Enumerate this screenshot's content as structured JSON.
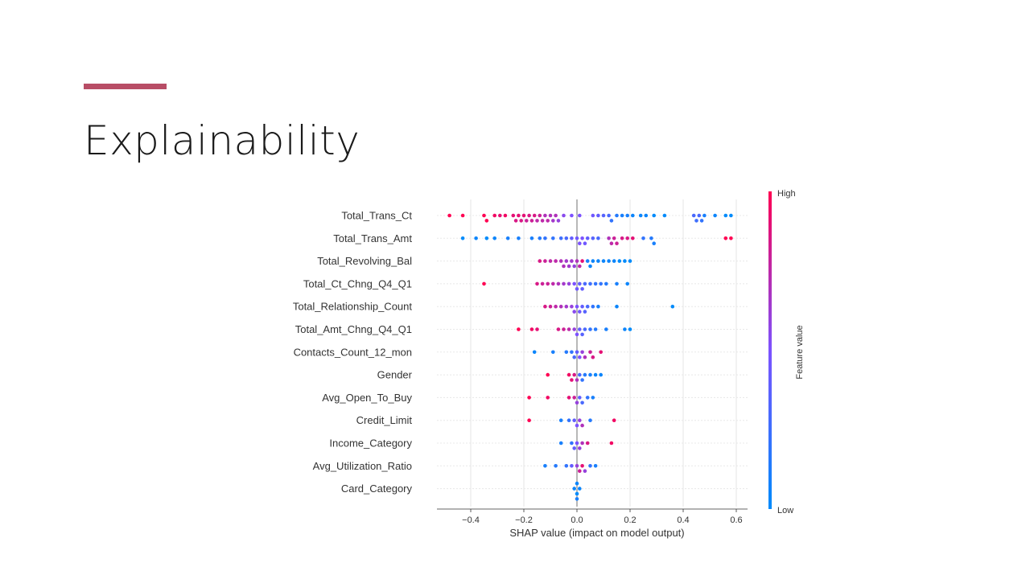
{
  "slide": {
    "title": "Explainability",
    "accent_color": "#b84d66"
  },
  "chart_data": {
    "type": "scatter",
    "subtype": "shap-beeswarm",
    "xlabel": "SHAP value (impact on model output)",
    "xticks": [
      -0.4,
      -0.2,
      0.0,
      0.2,
      0.4,
      0.6
    ],
    "xlim": [
      -0.53,
      0.65
    ],
    "grid": true,
    "colorbar": {
      "title": "Feature value",
      "high_label": "High",
      "low_label": "Low",
      "high_color": "#ff0052",
      "low_color": "#008bfb"
    },
    "features": [
      {
        "name": "Total_Trans_Ct",
        "points": [
          [
            -0.48,
            1
          ],
          [
            -0.43,
            1
          ],
          [
            -0.35,
            1
          ],
          [
            -0.34,
            1
          ],
          [
            -0.31,
            0.95
          ],
          [
            -0.29,
            0.9
          ],
          [
            -0.27,
            0.95
          ],
          [
            -0.24,
            0.9
          ],
          [
            -0.23,
            0.85
          ],
          [
            -0.22,
            0.9
          ],
          [
            -0.21,
            0.85
          ],
          [
            -0.2,
            0.9
          ],
          [
            -0.19,
            0.8
          ],
          [
            -0.18,
            0.85
          ],
          [
            -0.17,
            0.8
          ],
          [
            -0.16,
            0.85
          ],
          [
            -0.15,
            0.75
          ],
          [
            -0.14,
            0.8
          ],
          [
            -0.13,
            0.75
          ],
          [
            -0.12,
            0.7
          ],
          [
            -0.11,
            0.75
          ],
          [
            -0.1,
            0.7
          ],
          [
            -0.09,
            0.65
          ],
          [
            -0.08,
            0.7
          ],
          [
            -0.07,
            0.6
          ],
          [
            -0.05,
            0.55
          ],
          [
            -0.02,
            0.5
          ],
          [
            0.01,
            0.5
          ],
          [
            0.06,
            0.45
          ],
          [
            0.08,
            0.4
          ],
          [
            0.1,
            0.35
          ],
          [
            0.12,
            0.3
          ],
          [
            0.13,
            0.2
          ],
          [
            0.15,
            0.15
          ],
          [
            0.17,
            0.1
          ],
          [
            0.19,
            0.1
          ],
          [
            0.21,
            0.05
          ],
          [
            0.24,
            0.05
          ],
          [
            0.26,
            0.05
          ],
          [
            0.29,
            0.0
          ],
          [
            0.33,
            0.0
          ],
          [
            0.44,
            0.3
          ],
          [
            0.45,
            0.25
          ],
          [
            0.46,
            0.3
          ],
          [
            0.47,
            0.2
          ],
          [
            0.48,
            0.1
          ],
          [
            0.52,
            0.05
          ],
          [
            0.56,
            0.0
          ],
          [
            0.58,
            0.0
          ]
        ]
      },
      {
        "name": "Total_Trans_Amt",
        "points": [
          [
            -0.43,
            0.0
          ],
          [
            -0.38,
            0.05
          ],
          [
            -0.34,
            0.0
          ],
          [
            -0.31,
            0.05
          ],
          [
            -0.26,
            0.1
          ],
          [
            -0.22,
            0.1
          ],
          [
            -0.17,
            0.1
          ],
          [
            -0.14,
            0.15
          ],
          [
            -0.12,
            0.2
          ],
          [
            -0.09,
            0.2
          ],
          [
            -0.06,
            0.25
          ],
          [
            -0.04,
            0.3
          ],
          [
            -0.02,
            0.4
          ],
          [
            0.0,
            0.45
          ],
          [
            0.01,
            0.5
          ],
          [
            0.02,
            0.5
          ],
          [
            0.03,
            0.45
          ],
          [
            0.04,
            0.4
          ],
          [
            0.06,
            0.35
          ],
          [
            0.08,
            0.3
          ],
          [
            0.12,
            0.7
          ],
          [
            0.13,
            0.75
          ],
          [
            0.14,
            0.8
          ],
          [
            0.15,
            0.8
          ],
          [
            0.17,
            0.85
          ],
          [
            0.19,
            0.85
          ],
          [
            0.21,
            0.9
          ],
          [
            0.25,
            0.2
          ],
          [
            0.28,
            0.15
          ],
          [
            0.29,
            0.1
          ],
          [
            0.56,
            1
          ],
          [
            0.58,
            1
          ]
        ]
      },
      {
        "name": "Total_Revolving_Bal",
        "points": [
          [
            -0.14,
            0.85
          ],
          [
            -0.12,
            0.8
          ],
          [
            -0.1,
            0.75
          ],
          [
            -0.08,
            0.75
          ],
          [
            -0.06,
            0.7
          ],
          [
            -0.05,
            0.7
          ],
          [
            -0.04,
            0.65
          ],
          [
            -0.03,
            0.65
          ],
          [
            -0.02,
            0.65
          ],
          [
            -0.01,
            0.6
          ],
          [
            0.0,
            0.7
          ],
          [
            0.01,
            0.75
          ],
          [
            0.02,
            0.9
          ],
          [
            0.04,
            0.1
          ],
          [
            0.05,
            0.05
          ],
          [
            0.06,
            0.05
          ],
          [
            0.08,
            0.05
          ],
          [
            0.1,
            0.05
          ],
          [
            0.12,
            0.05
          ],
          [
            0.14,
            0.05
          ],
          [
            0.16,
            0.0
          ],
          [
            0.18,
            0.0
          ],
          [
            0.2,
            0.0
          ]
        ]
      },
      {
        "name": "Total_Ct_Chng_Q4_Q1",
        "points": [
          [
            -0.35,
            1
          ],
          [
            -0.15,
            0.85
          ],
          [
            -0.13,
            0.8
          ],
          [
            -0.11,
            0.8
          ],
          [
            -0.09,
            0.75
          ],
          [
            -0.07,
            0.7
          ],
          [
            -0.05,
            0.65
          ],
          [
            -0.03,
            0.6
          ],
          [
            -0.01,
            0.5
          ],
          [
            0.0,
            0.45
          ],
          [
            0.01,
            0.4
          ],
          [
            0.02,
            0.4
          ],
          [
            0.03,
            0.3
          ],
          [
            0.05,
            0.25
          ],
          [
            0.07,
            0.2
          ],
          [
            0.09,
            0.2
          ],
          [
            0.11,
            0.15
          ],
          [
            0.15,
            0.1
          ],
          [
            0.19,
            0.05
          ]
        ]
      },
      {
        "name": "Total_Relationship_Count",
        "points": [
          [
            -0.12,
            0.85
          ],
          [
            -0.1,
            0.8
          ],
          [
            -0.08,
            0.75
          ],
          [
            -0.06,
            0.7
          ],
          [
            -0.04,
            0.65
          ],
          [
            -0.02,
            0.6
          ],
          [
            -0.01,
            0.55
          ],
          [
            0.0,
            0.5
          ],
          [
            0.01,
            0.45
          ],
          [
            0.02,
            0.4
          ],
          [
            0.03,
            0.35
          ],
          [
            0.04,
            0.3
          ],
          [
            0.06,
            0.2
          ],
          [
            0.08,
            0.1
          ],
          [
            0.15,
            0.05
          ],
          [
            0.36,
            0.0
          ]
        ]
      },
      {
        "name": "Total_Amt_Chng_Q4_Q1",
        "points": [
          [
            -0.22,
            1
          ],
          [
            -0.17,
            0.95
          ],
          [
            -0.15,
            0.9
          ],
          [
            -0.07,
            0.85
          ],
          [
            -0.05,
            0.8
          ],
          [
            -0.03,
            0.75
          ],
          [
            -0.01,
            0.6
          ],
          [
            0.0,
            0.5
          ],
          [
            0.01,
            0.4
          ],
          [
            0.02,
            0.35
          ],
          [
            0.03,
            0.3
          ],
          [
            0.05,
            0.2
          ],
          [
            0.07,
            0.15
          ],
          [
            0.11,
            0.1
          ],
          [
            0.18,
            0.05
          ],
          [
            0.2,
            0.0
          ]
        ]
      },
      {
        "name": "Contacts_Count_12_mon",
        "points": [
          [
            -0.16,
            0.05
          ],
          [
            -0.09,
            0.1
          ],
          [
            -0.04,
            0.15
          ],
          [
            -0.02,
            0.2
          ],
          [
            -0.01,
            0.3
          ],
          [
            0.0,
            0.4
          ],
          [
            0.01,
            0.5
          ],
          [
            0.02,
            0.6
          ],
          [
            0.03,
            0.7
          ],
          [
            0.05,
            0.8
          ],
          [
            0.06,
            0.85
          ],
          [
            0.09,
            0.9
          ]
        ]
      },
      {
        "name": "Gender",
        "points": [
          [
            -0.11,
            1
          ],
          [
            -0.03,
            0.95
          ],
          [
            -0.02,
            0.9
          ],
          [
            -0.01,
            0.85
          ],
          [
            0.0,
            0.7
          ],
          [
            0.01,
            0.3
          ],
          [
            0.02,
            0.2
          ],
          [
            0.03,
            0.15
          ],
          [
            0.05,
            0.1
          ],
          [
            0.07,
            0.05
          ],
          [
            0.09,
            0.05
          ]
        ]
      },
      {
        "name": "Avg_Open_To_Buy",
        "points": [
          [
            -0.18,
            1
          ],
          [
            -0.11,
            0.95
          ],
          [
            -0.03,
            0.9
          ],
          [
            -0.01,
            0.8
          ],
          [
            0.0,
            0.6
          ],
          [
            0.01,
            0.4
          ],
          [
            0.02,
            0.3
          ],
          [
            0.04,
            0.2
          ],
          [
            0.06,
            0.1
          ]
        ]
      },
      {
        "name": "Credit_Limit",
        "points": [
          [
            -0.18,
            1
          ],
          [
            -0.06,
            0.1
          ],
          [
            -0.03,
            0.2
          ],
          [
            -0.01,
            0.4
          ],
          [
            0.0,
            0.5
          ],
          [
            0.01,
            0.6
          ],
          [
            0.02,
            0.7
          ],
          [
            0.05,
            0.15
          ],
          [
            0.14,
            0.95
          ]
        ]
      },
      {
        "name": "Income_Category",
        "points": [
          [
            -0.06,
            0.1
          ],
          [
            -0.02,
            0.2
          ],
          [
            -0.01,
            0.4
          ],
          [
            0.0,
            0.5
          ],
          [
            0.01,
            0.6
          ],
          [
            0.02,
            0.7
          ],
          [
            0.04,
            0.85
          ],
          [
            0.13,
            0.95
          ]
        ]
      },
      {
        "name": "Avg_Utilization_Ratio",
        "points": [
          [
            -0.12,
            0.1
          ],
          [
            -0.08,
            0.15
          ],
          [
            -0.04,
            0.2
          ],
          [
            -0.02,
            0.4
          ],
          [
            0.0,
            0.6
          ],
          [
            0.01,
            0.8
          ],
          [
            0.02,
            0.9
          ],
          [
            0.03,
            0.6
          ],
          [
            0.05,
            0.2
          ],
          [
            0.07,
            0.1
          ]
        ]
      },
      {
        "name": "Card_Category",
        "points": [
          [
            0.0,
            0.0
          ],
          [
            0.0,
            0.05
          ],
          [
            0.0,
            0.1
          ],
          [
            0.01,
            0.05
          ],
          [
            -0.01,
            0.05
          ]
        ]
      }
    ]
  }
}
